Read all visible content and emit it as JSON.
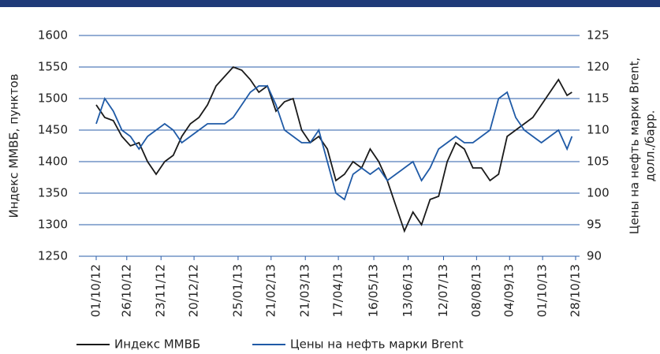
{
  "chart_data": {
    "type": "line",
    "ylabel": "Индекс ММВБ, пунктов",
    "y2label": [
      "Цены на нефть марки Brent,",
      "долл./барр."
    ],
    "x": [
      "01/10/12",
      "08/10/12",
      "15/10/12",
      "22/10/12",
      "29/10/12",
      "05/11/12",
      "12/11/12",
      "19/11/12",
      "26/11/12",
      "03/12/12",
      "10/12/12",
      "17/12/12",
      "24/12/12",
      "31/12/12",
      "07/01/13",
      "14/01/13",
      "21/01/13",
      "28/01/13",
      "04/02/13",
      "11/02/13",
      "18/02/13",
      "25/02/13",
      "04/03/13",
      "11/03/13",
      "18/03/13",
      "25/03/13",
      "01/04/13",
      "08/04/13",
      "15/04/13",
      "22/04/13",
      "29/04/13",
      "06/05/13",
      "13/05/13",
      "20/05/13",
      "27/05/13",
      "03/06/13",
      "10/06/13",
      "17/06/13",
      "24/06/13",
      "01/07/13",
      "08/07/13",
      "15/07/13",
      "22/07/13",
      "29/07/13",
      "05/08/13",
      "12/08/13",
      "19/08/13",
      "26/08/13",
      "02/09/13",
      "09/09/13",
      "16/09/13",
      "23/09/13",
      "30/09/13",
      "07/10/13",
      "14/10/13",
      "21/10/13",
      "25/10/13"
    ],
    "series": [
      {
        "name": "Индекс ММВБ",
        "color": "#1a1a1a",
        "axis": "y",
        "values": [
          1490,
          1470,
          1465,
          1440,
          1425,
          1430,
          1400,
          1380,
          1400,
          1410,
          1440,
          1460,
          1470,
          1490,
          1520,
          1535,
          1550,
          1545,
          1530,
          1510,
          1520,
          1480,
          1495,
          1500,
          1450,
          1430,
          1440,
          1420,
          1370,
          1380,
          1400,
          1390,
          1420,
          1400,
          1370,
          1330,
          1290,
          1320,
          1300,
          1340,
          1345,
          1400,
          1430,
          1420,
          1390,
          1390,
          1370,
          1380,
          1440,
          1450,
          1460,
          1470,
          1490,
          1510,
          1530,
          1505,
          1510
        ]
      },
      {
        "name": "Цены на нефть марки Brent",
        "color": "#1f5aa6",
        "axis": "y2",
        "values": [
          111,
          115,
          113,
          110,
          109,
          107,
          109,
          110,
          111,
          110,
          108,
          109,
          110,
          111,
          111,
          111,
          112,
          114,
          116,
          117,
          117,
          114,
          110,
          109,
          108,
          108,
          110,
          105,
          100,
          99,
          103,
          104,
          103,
          104,
          102,
          103,
          104,
          105,
          102,
          104,
          107,
          108,
          109,
          108,
          108,
          109,
          110,
          115,
          116,
          112,
          110,
          109,
          108,
          109,
          110,
          107,
          109
        ]
      }
    ],
    "xlim": [
      "01/10/12",
      "28/10/13"
    ],
    "xticks": [
      "01/10/12",
      "26/10/12",
      "23/11/12",
      "20/12/12",
      "25/01/13",
      "21/02/13",
      "21/03/13",
      "17/04/13",
      "16/05/13",
      "13/06/13",
      "12/07/13",
      "08/08/13",
      "04/09/13",
      "01/10/13",
      "28/10/13"
    ],
    "ylim": [
      1250,
      1600
    ],
    "yticks": [
      1250,
      1300,
      1350,
      1400,
      1450,
      1500,
      1550,
      1600
    ],
    "y2lim": [
      90,
      125
    ],
    "y2ticks": [
      90,
      95,
      100,
      105,
      110,
      115,
      120,
      125
    ],
    "grid": true
  }
}
